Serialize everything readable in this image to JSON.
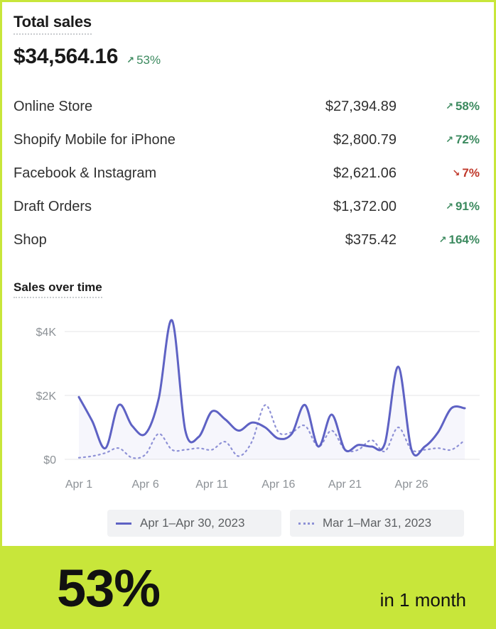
{
  "card": {
    "title": "Total sales",
    "total": "$34,564.16",
    "total_change": "53%",
    "total_direction": "up"
  },
  "channels": [
    {
      "name": "Online Store",
      "amount": "$27,394.89",
      "change": "58%",
      "direction": "up"
    },
    {
      "name": "Shopify Mobile for iPhone",
      "amount": "$2,800.79",
      "change": "72%",
      "direction": "up"
    },
    {
      "name": "Facebook & Instagram",
      "amount": "$2,621.06",
      "change": "7%",
      "direction": "down"
    },
    {
      "name": "Draft Orders",
      "amount": "$1,372.00",
      "change": "91%",
      "direction": "up"
    },
    {
      "name": "Shop",
      "amount": "$375.42",
      "change": "164%",
      "direction": "up"
    }
  ],
  "chart_section": {
    "title": "Sales over time"
  },
  "chart_data": {
    "type": "line",
    "title": "Sales over time",
    "x_tick_labels": [
      "Apr 1",
      "Apr 6",
      "Apr 11",
      "Apr 16",
      "Apr 21",
      "Apr 26"
    ],
    "y_tick_labels": [
      "$0",
      "$2K",
      "$4K"
    ],
    "ylim": [
      0,
      4400
    ],
    "x": [
      1,
      2,
      3,
      4,
      5,
      6,
      7,
      8,
      9,
      10,
      11,
      12,
      13,
      14,
      15,
      16,
      17,
      18,
      19,
      20,
      21,
      22,
      23,
      24,
      25,
      26,
      27,
      28,
      29,
      30
    ],
    "series": [
      {
        "name": "Apr 1–Apr 30, 2023",
        "style": "solid",
        "color": "#5e62c4",
        "values": [
          1950,
          1200,
          350,
          1700,
          1050,
          800,
          1900,
          4350,
          900,
          700,
          1500,
          1250,
          900,
          1150,
          1000,
          650,
          800,
          1700,
          400,
          1400,
          300,
          450,
          400,
          500,
          2900,
          300,
          400,
          850,
          1600,
          1600
        ]
      },
      {
        "name": "Mar 1–Mar 31, 2023",
        "style": "dotted",
        "color": "#8e91d6",
        "values": [
          50,
          100,
          200,
          350,
          50,
          150,
          800,
          300,
          300,
          350,
          300,
          550,
          100,
          550,
          1700,
          850,
          850,
          1050,
          400,
          900,
          300,
          300,
          600,
          250,
          1000,
          300,
          300,
          350,
          300,
          600
        ]
      }
    ],
    "grid": true,
    "legend": "bottom"
  },
  "banner": {
    "value": "53%",
    "caption": "in 1 month"
  },
  "colors": {
    "up": "#3c8a5f",
    "down": "#c0392b",
    "accent": "#c8e63a"
  }
}
